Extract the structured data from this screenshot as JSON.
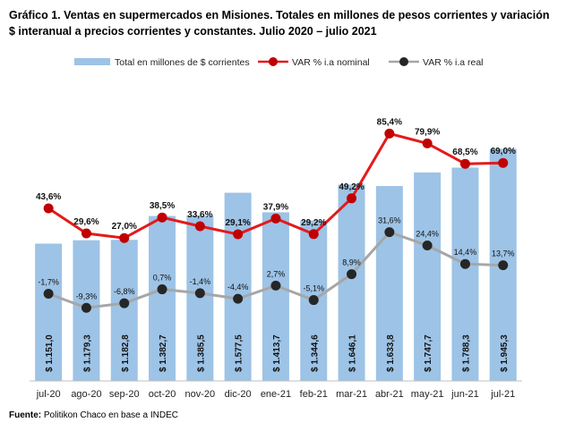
{
  "title": "Gráfico 1. Ventas en supermercados en Misiones. Totales en millones de pesos corrientes y variación $ interanual a precios corrientes y constantes. Julio 2020 – julio 2021",
  "source": {
    "label": "Fuente:",
    "text": "Politikon Chaco en base a INDEC"
  },
  "chart_data": {
    "type": "bar",
    "categories": [
      "jul-20",
      "ago-20",
      "sep-20",
      "oct-20",
      "nov-20",
      "dic-20",
      "ene-21",
      "feb-21",
      "mar-21",
      "abr-21",
      "may-21",
      "jun-21",
      "jul-21"
    ],
    "series": [
      {
        "name": "Total en millones de $ corrientes",
        "type": "bar",
        "color": "#9dc3e6",
        "values": [
          1151.0,
          1179.3,
          1182.8,
          1382.7,
          1385.5,
          1577.5,
          1413.7,
          1344.6,
          1646.1,
          1633.8,
          1747.7,
          1788.3,
          1945.3
        ],
        "labels": [
          "$ 1.151,0",
          "$ 1.179,3",
          "$ 1.182,8",
          "$ 1.382,7",
          "$ 1.385,5",
          "$ 1.577,5",
          "$ 1.413,7",
          "$ 1.344,6",
          "$ 1.646,1",
          "$ 1.633,8",
          "$ 1.747,7",
          "$ 1.788,3",
          "$ 1.945,3"
        ]
      },
      {
        "name": "VAR % i.a nominal",
        "type": "line",
        "color": "#e31a1c",
        "values": [
          43.6,
          29.6,
          27.0,
          38.5,
          33.6,
          29.1,
          37.9,
          29.2,
          49.2,
          85.4,
          79.9,
          68.5,
          69.0
        ],
        "labels": [
          "43,6%",
          "29,6%",
          "27,0%",
          "38,5%",
          "33,6%",
          "29,1%",
          "37,9%",
          "29,2%",
          "49,2%",
          "85,4%",
          "79,9%",
          "68,5%",
          "69,0%"
        ]
      },
      {
        "name": "VAR % i.a real",
        "type": "line",
        "color": "#a6a6a6",
        "values": [
          -1.7,
          -9.3,
          -6.8,
          0.7,
          -1.4,
          -4.4,
          2.7,
          -5.1,
          8.9,
          31.6,
          24.4,
          14.4,
          13.7
        ],
        "labels": [
          "-1,7%",
          "-9,3%",
          "-6,8%",
          "0,7%",
          "-1,4%",
          "-4,4%",
          "2,7%",
          "-5,1%",
          "8,9%",
          "31,6%",
          "24,4%",
          "14,4%",
          "13,7%"
        ]
      }
    ],
    "grid": false,
    "legend_position": "top"
  }
}
